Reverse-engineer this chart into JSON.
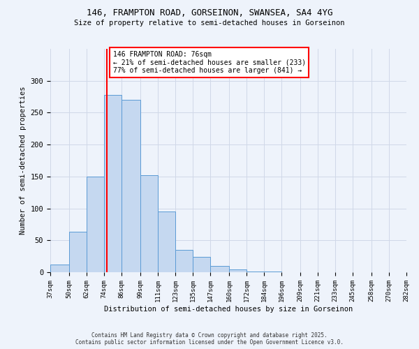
{
  "title": "146, FRAMPTON ROAD, GORSEINON, SWANSEA, SA4 4YG",
  "subtitle": "Size of property relative to semi-detached houses in Gorseinon",
  "xlabel": "Distribution of semi-detached houses by size in Gorseinon",
  "ylabel": "Number of semi-detached properties",
  "bin_edges": [
    37,
    50,
    62,
    74,
    86,
    99,
    111,
    123,
    135,
    147,
    160,
    172,
    184,
    196,
    209,
    221,
    233,
    245,
    258,
    270,
    282
  ],
  "bin_labels": [
    "37sqm",
    "50sqm",
    "62sqm",
    "74sqm",
    "86sqm",
    "99sqm",
    "111sqm",
    "123sqm",
    "135sqm",
    "147sqm",
    "160sqm",
    "172sqm",
    "184sqm",
    "196sqm",
    "209sqm",
    "221sqm",
    "233sqm",
    "245sqm",
    "258sqm",
    "270sqm",
    "282sqm"
  ],
  "bar_heights": [
    12,
    63,
    150,
    278,
    270,
    152,
    95,
    35,
    24,
    10,
    4,
    1,
    1,
    0,
    0,
    0,
    0,
    0,
    0,
    0
  ],
  "bar_color": "#c5d8f0",
  "bar_edgecolor": "#5b9bd5",
  "property_line_x": 76,
  "property_line_color": "red",
  "annotation_title": "146 FRAMPTON ROAD: 76sqm",
  "annotation_line1": "← 21% of semi-detached houses are smaller (233)",
  "annotation_line2": "77% of semi-detached houses are larger (841) →",
  "annotation_box_color": "white",
  "annotation_box_edgecolor": "red",
  "ylim": [
    0,
    350
  ],
  "yticks": [
    0,
    50,
    100,
    150,
    200,
    250,
    300,
    350
  ],
  "footer_line1": "Contains HM Land Registry data © Crown copyright and database right 2025.",
  "footer_line2": "Contains public sector information licensed under the Open Government Licence v3.0.",
  "bg_color": "#eef3fb",
  "grid_color": "#d0d8e8"
}
